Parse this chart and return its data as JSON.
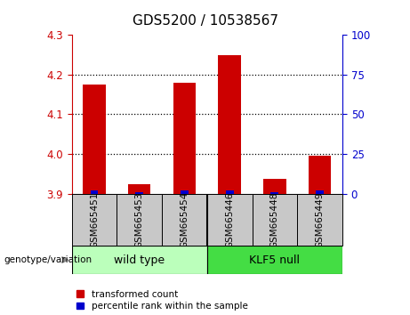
{
  "title": "GDS5200 / 10538567",
  "samples": [
    "GSM665451",
    "GSM665453",
    "GSM665454",
    "GSM665446",
    "GSM665448",
    "GSM665449"
  ],
  "red_values": [
    4.175,
    3.925,
    4.178,
    4.248,
    3.938,
    3.995
  ],
  "blue_percentile": [
    2.0,
    1.0,
    2.0,
    2.0,
    1.0,
    2.0
  ],
  "ylim_left": [
    3.9,
    4.3
  ],
  "ylim_right": [
    0,
    100
  ],
  "yticks_left": [
    3.9,
    4.0,
    4.1,
    4.2,
    4.3
  ],
  "yticks_right": [
    0,
    25,
    50,
    75,
    100
  ],
  "group1_label": "wild type",
  "group2_label": "KLF5 null",
  "group1_color": "#bbffbb",
  "group2_color": "#44dd44",
  "bar_bg_color": "#c8c8c8",
  "legend_red": "transformed count",
  "legend_blue": "percentile rank within the sample",
  "red_color": "#cc0000",
  "blue_color": "#0000cc",
  "genotype_label": "genotype/variation",
  "grid_lines": [
    4.0,
    4.1,
    4.2
  ],
  "n_groups": 2,
  "group_split": 3
}
